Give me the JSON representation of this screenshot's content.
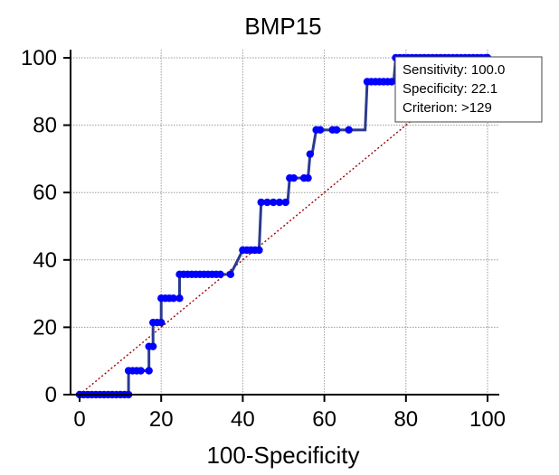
{
  "chart_data": {
    "type": "line",
    "title": "BMP15",
    "xlabel": "100-Specificity",
    "ylabel": "",
    "xlim": [
      0,
      100
    ],
    "ylim": [
      0,
      100
    ],
    "xticks": [
      0,
      20,
      40,
      60,
      80,
      100
    ],
    "yticks": [
      0,
      20,
      40,
      60,
      80,
      100
    ],
    "grid": true,
    "series": [
      {
        "color": "#2b3a8f",
        "marker_color": "#0000ff",
        "points": [
          [
            0,
            0
          ],
          [
            12,
            0
          ],
          [
            12,
            7.1
          ],
          [
            17,
            7.1
          ],
          [
            17,
            14.3
          ],
          [
            18,
            14.3
          ],
          [
            18,
            21.4
          ],
          [
            20,
            21.4
          ],
          [
            20,
            28.6
          ],
          [
            24.5,
            28.6
          ],
          [
            24.5,
            35.7
          ],
          [
            37,
            35.7
          ],
          [
            40,
            42.9
          ],
          [
            44,
            42.9
          ],
          [
            44.5,
            57.1
          ],
          [
            51,
            57.1
          ],
          [
            51.5,
            64.3
          ],
          [
            56,
            64.3
          ],
          [
            56.5,
            71.4
          ],
          [
            57,
            71.4
          ],
          [
            58,
            78.6
          ],
          [
            70,
            78.6
          ],
          [
            70.5,
            92.9
          ],
          [
            77,
            92.9
          ],
          [
            77.5,
            100
          ],
          [
            100,
            100
          ]
        ],
        "markers": [
          [
            0,
            0
          ],
          [
            1,
            0
          ],
          [
            2,
            0
          ],
          [
            3,
            0
          ],
          [
            4,
            0
          ],
          [
            5,
            0
          ],
          [
            6,
            0
          ],
          [
            7,
            0
          ],
          [
            8,
            0
          ],
          [
            9,
            0
          ],
          [
            10,
            0
          ],
          [
            11,
            0
          ],
          [
            12,
            0
          ],
          [
            12,
            7.1
          ],
          [
            13,
            7.1
          ],
          [
            14,
            7.1
          ],
          [
            15,
            7.1
          ],
          [
            17,
            7.1
          ],
          [
            17,
            14.3
          ],
          [
            18,
            14.3
          ],
          [
            18,
            21.4
          ],
          [
            19,
            21.4
          ],
          [
            20,
            21.4
          ],
          [
            20,
            28.6
          ],
          [
            21,
            28.6
          ],
          [
            22,
            28.6
          ],
          [
            23,
            28.6
          ],
          [
            24.5,
            28.6
          ],
          [
            24.5,
            35.7
          ],
          [
            25.5,
            35.7
          ],
          [
            26.5,
            35.7
          ],
          [
            27.5,
            35.7
          ],
          [
            28.5,
            35.7
          ],
          [
            29.5,
            35.7
          ],
          [
            30.5,
            35.7
          ],
          [
            31.5,
            35.7
          ],
          [
            32.5,
            35.7
          ],
          [
            33.5,
            35.7
          ],
          [
            34.5,
            35.7
          ],
          [
            37,
            35.7
          ],
          [
            40,
            42.9
          ],
          [
            41,
            42.9
          ],
          [
            42,
            42.9
          ],
          [
            43,
            42.9
          ],
          [
            44,
            42.9
          ],
          [
            44.5,
            57.1
          ],
          [
            46,
            57.1
          ],
          [
            47.5,
            57.1
          ],
          [
            49,
            57.1
          ],
          [
            50.5,
            57.1
          ],
          [
            51.5,
            64.3
          ],
          [
            52.5,
            64.3
          ],
          [
            55,
            64.3
          ],
          [
            56,
            64.3
          ],
          [
            56.5,
            71.4
          ],
          [
            58,
            78.6
          ],
          [
            59,
            78.6
          ],
          [
            62,
            78.6
          ],
          [
            63,
            78.6
          ],
          [
            66,
            78.6
          ],
          [
            70.5,
            92.9
          ],
          [
            71.5,
            92.9
          ],
          [
            72.5,
            92.9
          ],
          [
            73.5,
            92.9
          ],
          [
            74.5,
            92.9
          ],
          [
            75.5,
            92.9
          ],
          [
            76.5,
            92.9
          ],
          [
            77.5,
            100
          ],
          [
            78.5,
            100
          ],
          [
            79.5,
            100
          ],
          [
            80.5,
            100
          ],
          [
            81.5,
            100
          ],
          [
            82.5,
            100
          ],
          [
            83.5,
            100
          ],
          [
            84.5,
            100
          ],
          [
            85.5,
            100
          ],
          [
            86.5,
            100
          ],
          [
            87.5,
            100
          ],
          [
            88.5,
            100
          ],
          [
            89.5,
            100
          ],
          [
            90.5,
            100
          ],
          [
            91.5,
            100
          ],
          [
            92.5,
            100
          ],
          [
            93.5,
            100
          ],
          [
            94.5,
            100
          ],
          [
            95.5,
            100
          ],
          [
            96.5,
            100
          ],
          [
            97.5,
            100
          ],
          [
            98.5,
            100
          ],
          [
            99.5,
            100
          ],
          [
            100,
            100
          ]
        ]
      }
    ],
    "reference_line": {
      "from": [
        0,
        0
      ],
      "to": [
        100,
        100
      ],
      "color": "#a00000"
    },
    "annotation": {
      "lines": [
        "Sensitivity: 100.0",
        "Specificity: 22.1",
        "Criterion: >129"
      ],
      "anchor": "top-right"
    }
  }
}
